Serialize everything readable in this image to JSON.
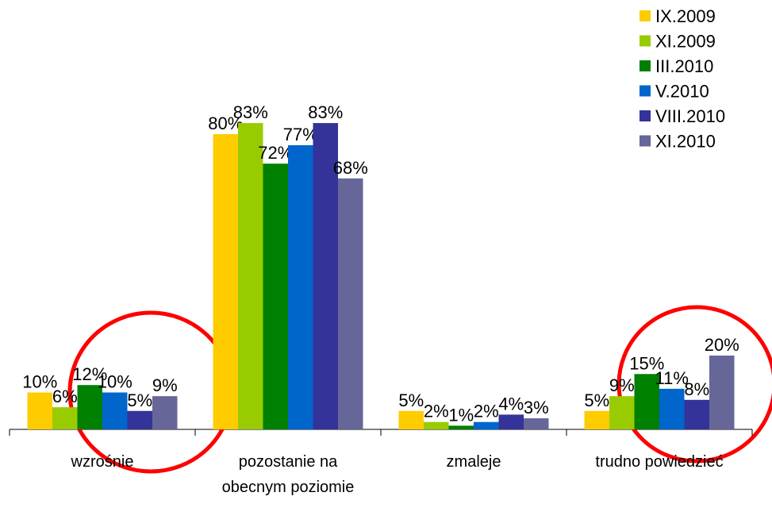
{
  "chart_data": {
    "type": "bar",
    "categories": [
      "wzrośnie",
      "pozostanie na obecnym poziomie",
      "zmaleje",
      "trudno powiedzieć"
    ],
    "series": [
      {
        "name": "IX.2009",
        "color": "#FFCC00",
        "values": [
          10,
          80,
          5,
          5
        ],
        "value_labels": [
          "10%",
          "80%",
          "5%",
          "5%"
        ]
      },
      {
        "name": "XI.2009",
        "color": "#99CC00",
        "values": [
          6,
          83,
          2,
          9
        ],
        "value_labels": [
          "6%",
          "83%",
          "2%",
          "9%"
        ]
      },
      {
        "name": "III.2010",
        "color": "#008000",
        "values": [
          12,
          72,
          1,
          15
        ],
        "value_labels": [
          "12%",
          "72%",
          "1%",
          "15%"
        ]
      },
      {
        "name": "V.2010",
        "color": "#0066CC",
        "values": [
          10,
          77,
          2,
          11
        ],
        "value_labels": [
          "10%",
          "77%",
          "2%",
          "11%"
        ]
      },
      {
        "name": "VIII.2010",
        "color": "#333399",
        "values": [
          5,
          83,
          4,
          8
        ],
        "value_labels": [
          "5%",
          "83%",
          "4%",
          "8%"
        ]
      },
      {
        "name": "XI.2010",
        "color": "#666699",
        "values": [
          9,
          68,
          3,
          20
        ],
        "value_labels": [
          "9%",
          "68%",
          "3%",
          "20%"
        ]
      }
    ],
    "ylim": [
      0,
      100
    ],
    "legend": "top-right"
  }
}
